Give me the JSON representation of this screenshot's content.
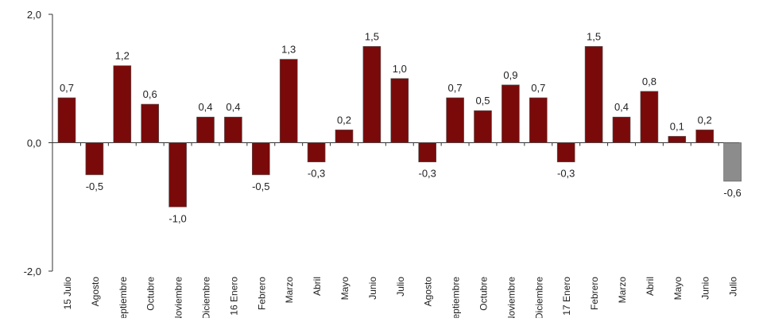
{
  "chart_data": {
    "type": "bar",
    "title": "",
    "xlabel": "",
    "ylabel": "",
    "ylim": [
      -2.0,
      2.0
    ],
    "y_ticks": [
      {
        "value": 2.0,
        "label": "2,0"
      },
      {
        "value": 0.0,
        "label": "0,0"
      },
      {
        "value": -2.0,
        "label": "-2,0"
      }
    ],
    "grid": false,
    "legend": "none",
    "categories": [
      "15 Julio",
      "Agosto",
      "Septiembre",
      "Octubre",
      "Noviembre",
      "Diciembre",
      "16 Enero",
      "Febrero",
      "Marzo",
      "Abril",
      "Mayo",
      "Junio",
      "Julio",
      "Agosto",
      "Septiembre",
      "Octubre",
      "Noviembre",
      "Diciembre",
      "17 Enero",
      "Febrero",
      "Marzo",
      "Abril",
      "Mayo",
      "Junio",
      "Julio"
    ],
    "values": [
      0.7,
      -0.5,
      1.2,
      0.6,
      -1.0,
      0.4,
      0.4,
      -0.5,
      1.3,
      -0.3,
      0.2,
      1.5,
      1.0,
      -0.3,
      0.7,
      0.5,
      0.9,
      0.7,
      -0.3,
      1.5,
      0.4,
      0.8,
      0.1,
      0.2,
      -0.6
    ],
    "value_labels": [
      "0,7",
      "-0,5",
      "1,2",
      "0,6",
      "-1,0",
      "0,4",
      "0,4",
      "-0,5",
      "1,3",
      "-0,3",
      "0,2",
      "1,5",
      "1,0",
      "-0,3",
      "0,7",
      "0,5",
      "0,9",
      "0,7",
      "-0,3",
      "1,5",
      "0,4",
      "0,8",
      "0,1",
      "0,2",
      "-0,6"
    ],
    "bar_colors": [
      "#7a0a0a",
      "#7a0a0a",
      "#7a0a0a",
      "#7a0a0a",
      "#7a0a0a",
      "#7a0a0a",
      "#7a0a0a",
      "#7a0a0a",
      "#7a0a0a",
      "#7a0a0a",
      "#7a0a0a",
      "#7a0a0a",
      "#7a0a0a",
      "#7a0a0a",
      "#7a0a0a",
      "#7a0a0a",
      "#7a0a0a",
      "#7a0a0a",
      "#7a0a0a",
      "#7a0a0a",
      "#7a0a0a",
      "#7a0a0a",
      "#7a0a0a",
      "#7a0a0a",
      "#8c8c8c"
    ]
  }
}
